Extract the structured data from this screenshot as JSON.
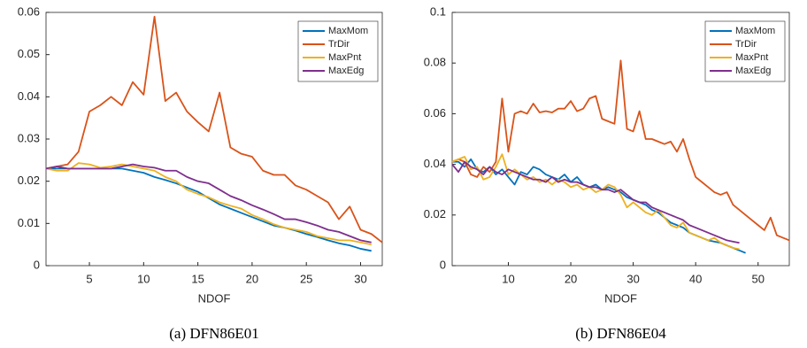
{
  "chart_data": [
    {
      "type": "line",
      "caption": "(a) DFN86E01",
      "xlabel": "NDOF",
      "x": [
        1,
        2,
        3,
        4,
        5,
        6,
        7,
        8,
        9,
        10,
        11,
        12,
        13,
        14,
        15,
        16,
        17,
        18,
        19,
        20,
        21,
        22,
        23,
        24,
        25,
        26,
        27,
        28,
        29,
        30,
        31,
        32
      ],
      "xlim": [
        1,
        32
      ],
      "xticks": [
        5,
        10,
        15,
        20,
        25,
        30
      ],
      "ylim": [
        0,
        0.06
      ],
      "yticks": [
        0,
        0.01,
        0.02,
        0.03,
        0.04,
        0.05,
        0.06
      ],
      "legend": "upper right",
      "series": [
        {
          "name": "MaxMom",
          "color": "#0072BD",
          "values": [
            0.023,
            0.023,
            0.023,
            0.023,
            0.023,
            0.023,
            0.023,
            0.023,
            0.0225,
            0.022,
            0.021,
            0.0203,
            0.0195,
            0.0185,
            0.0175,
            0.016,
            0.0145,
            0.0135,
            0.0125,
            0.0115,
            0.0105,
            0.0095,
            0.009,
            0.0083,
            0.0075,
            0.0068,
            0.006,
            0.0053,
            0.0048,
            0.004,
            0.0035,
            null
          ]
        },
        {
          "name": "TrDir",
          "color": "#D95319",
          "values": [
            0.023,
            0.0235,
            0.024,
            0.027,
            0.0365,
            0.038,
            0.04,
            0.038,
            0.0435,
            0.0405,
            0.059,
            0.039,
            0.041,
            0.0365,
            0.034,
            0.0318,
            0.041,
            0.028,
            0.0265,
            0.0258,
            0.0225,
            0.0215,
            0.0215,
            0.019,
            0.018,
            0.0165,
            0.015,
            0.011,
            0.014,
            0.0085,
            0.0075,
            0.0055
          ]
        },
        {
          "name": "MaxPnt",
          "color": "#EDB120",
          "values": [
            0.023,
            0.0225,
            0.0225,
            0.0243,
            0.024,
            0.0232,
            0.0235,
            0.024,
            0.0235,
            0.023,
            0.0225,
            0.021,
            0.02,
            0.018,
            0.017,
            0.0162,
            0.015,
            0.0142,
            0.0135,
            0.012,
            0.011,
            0.0098,
            0.009,
            0.0085,
            0.008,
            0.007,
            0.0065,
            0.006,
            0.006,
            0.0055,
            0.005,
            null
          ]
        },
        {
          "name": "MaxEdg",
          "color": "#7E2F8E",
          "values": [
            0.023,
            0.0235,
            0.023,
            0.023,
            0.023,
            0.023,
            0.023,
            0.0235,
            0.024,
            0.0235,
            0.0232,
            0.0225,
            0.0225,
            0.021,
            0.02,
            0.0195,
            0.018,
            0.0165,
            0.0155,
            0.0143,
            0.0133,
            0.0122,
            0.011,
            0.011,
            0.0103,
            0.0095,
            0.0085,
            0.008,
            0.007,
            0.006,
            0.0055,
            null
          ]
        }
      ]
    },
    {
      "type": "line",
      "caption": "(b) DFN86E04",
      "xlabel": "NDOF",
      "x": [
        1,
        2,
        3,
        4,
        5,
        6,
        7,
        8,
        9,
        10,
        11,
        12,
        13,
        14,
        15,
        16,
        17,
        18,
        19,
        20,
        21,
        22,
        23,
        24,
        25,
        26,
        27,
        28,
        29,
        30,
        31,
        32,
        33,
        34,
        35,
        36,
        37,
        38,
        39,
        40,
        41,
        42,
        43,
        44,
        45,
        46,
        47,
        48,
        49,
        50,
        51,
        52,
        53,
        54,
        55
      ],
      "xlim": [
        1,
        55
      ],
      "xticks": [
        10,
        20,
        30,
        40,
        50
      ],
      "ylim": [
        0,
        0.1
      ],
      "yticks": [
        0,
        0.02,
        0.04,
        0.06,
        0.08,
        0.1
      ],
      "legend": "upper right",
      "series": [
        {
          "name": "MaxMom",
          "color": "#0072BD",
          "values": [
            0.041,
            0.041,
            0.039,
            0.042,
            0.038,
            0.037,
            0.039,
            0.036,
            0.038,
            0.035,
            0.032,
            0.037,
            0.036,
            0.039,
            0.038,
            0.036,
            0.035,
            0.034,
            0.036,
            0.033,
            0.035,
            0.032,
            0.031,
            0.032,
            0.03,
            0.031,
            0.03,
            0.029,
            0.027,
            0.026,
            0.025,
            0.024,
            0.022,
            0.021,
            0.019,
            0.017,
            0.016,
            0.015,
            0.013,
            0.012,
            0.011,
            0.01,
            0.0095,
            0.009,
            0.008,
            0.007,
            0.006,
            0.005,
            null,
            null,
            null,
            null,
            null,
            null,
            null
          ]
        },
        {
          "name": "TrDir",
          "color": "#D95319",
          "values": [
            0.041,
            0.042,
            0.041,
            0.036,
            0.035,
            0.039,
            0.037,
            0.041,
            0.066,
            0.045,
            0.06,
            0.061,
            0.06,
            0.064,
            0.0605,
            0.061,
            0.0605,
            0.062,
            0.062,
            0.065,
            0.061,
            0.062,
            0.066,
            0.067,
            0.058,
            0.057,
            0.056,
            0.081,
            0.054,
            0.053,
            0.061,
            0.05,
            0.05,
            0.049,
            0.048,
            0.049,
            0.045,
            0.05,
            0.042,
            0.035,
            0.033,
            0.031,
            0.029,
            0.028,
            0.029,
            0.024,
            0.022,
            0.02,
            0.018,
            0.016,
            0.014,
            0.019,
            0.012,
            0.011,
            0.01
          ]
        },
        {
          "name": "MaxPnt",
          "color": "#EDB120",
          "values": [
            0.041,
            0.042,
            0.043,
            0.038,
            0.039,
            0.034,
            0.035,
            0.039,
            0.044,
            0.036,
            0.038,
            0.036,
            0.034,
            0.035,
            0.033,
            0.034,
            0.032,
            0.034,
            0.033,
            0.031,
            0.032,
            0.03,
            0.031,
            0.029,
            0.03,
            0.032,
            0.031,
            0.028,
            0.023,
            0.025,
            0.023,
            0.021,
            0.02,
            0.022,
            0.019,
            0.016,
            0.015,
            0.017,
            0.013,
            0.012,
            0.011,
            0.01,
            0.011,
            0.009,
            0.008,
            0.007,
            0.0065,
            null,
            null,
            null,
            null,
            null,
            null,
            null,
            null
          ]
        },
        {
          "name": "MaxEdg",
          "color": "#7E2F8E",
          "values": [
            0.04,
            0.037,
            0.041,
            0.039,
            0.038,
            0.036,
            0.039,
            0.037,
            0.036,
            0.038,
            0.037,
            0.036,
            0.035,
            0.034,
            0.034,
            0.033,
            0.035,
            0.033,
            0.034,
            0.033,
            0.033,
            0.032,
            0.031,
            0.031,
            0.03,
            0.03,
            0.029,
            0.03,
            0.028,
            0.026,
            0.025,
            0.025,
            0.023,
            0.022,
            0.021,
            0.02,
            0.019,
            0.018,
            0.016,
            0.015,
            0.014,
            0.013,
            0.012,
            0.011,
            0.01,
            0.0095,
            0.009,
            null,
            null,
            null,
            null,
            null,
            null,
            null,
            null
          ]
        }
      ]
    }
  ]
}
